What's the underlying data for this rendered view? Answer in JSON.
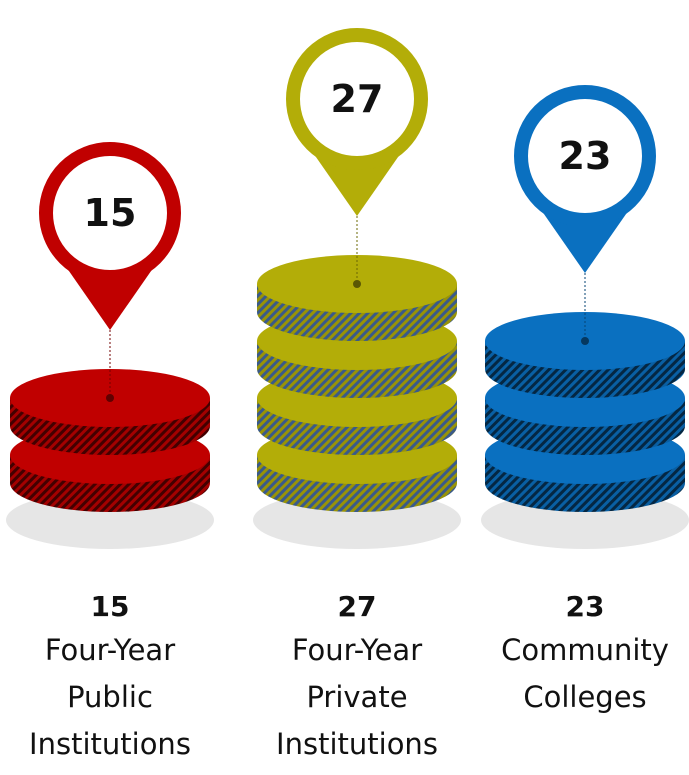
{
  "chart_data": {
    "type": "pictorial",
    "categories": [
      "Four-Year Public Institutions",
      "Four-Year Private Institutions",
      "Community Colleges"
    ],
    "values": [
      15,
      27,
      23
    ],
    "colors": [
      "#c00000",
      "#b3ad08",
      "#0a70c0"
    ]
  }
}
